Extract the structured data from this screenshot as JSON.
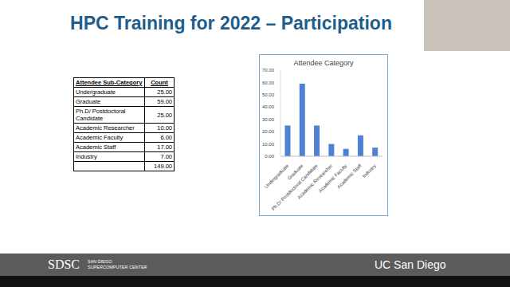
{
  "slide": {
    "title": "HPC Training for 2022 – Participation",
    "table": {
      "header": [
        "Attendee Sub-Category",
        "Count"
      ],
      "rows": [
        [
          "Undergraduate",
          "25.00"
        ],
        [
          "Graduate",
          "59.00"
        ],
        [
          "Ph.D/ Postdoctoral Candidate",
          "25.00"
        ],
        [
          "Academic Researcher",
          "10.00"
        ],
        [
          "Academic Faculty",
          "6.00"
        ],
        [
          "Academic Staff",
          "17.00"
        ],
        [
          "Industry",
          "7.00"
        ],
        [
          null,
          "149.00"
        ]
      ]
    },
    "footer": {
      "left_logo": "SDSC",
      "left_line1": "SAN DIEGO",
      "left_line2": "SUPERCOMPUTER CENTER",
      "right": "UC San Diego"
    }
  },
  "chart_data": {
    "type": "bar",
    "title": "Attendee Category",
    "categories": [
      "Undergraduate",
      "Graduate",
      "Ph.D/ Postdoctoral Candidate",
      "Academic Researcher",
      "Academic Faculty",
      "Academic Staff",
      "Industry"
    ],
    "values": [
      25,
      59,
      25,
      10,
      6,
      17,
      7
    ],
    "color": "#4f81d3",
    "ylim": [
      0,
      70
    ],
    "yticks": [
      {
        "value": 0,
        "label": "0.00"
      },
      {
        "value": 10,
        "label": "10.00"
      },
      {
        "value": 20,
        "label": "20.00"
      },
      {
        "value": 30,
        "label": "30.00"
      },
      {
        "value": 40,
        "label": "40.00"
      },
      {
        "value": 50,
        "label": "50.00"
      },
      {
        "value": 60,
        "label": "60.00"
      },
      {
        "value": 70,
        "label": "70.00"
      }
    ],
    "grid": false
  }
}
